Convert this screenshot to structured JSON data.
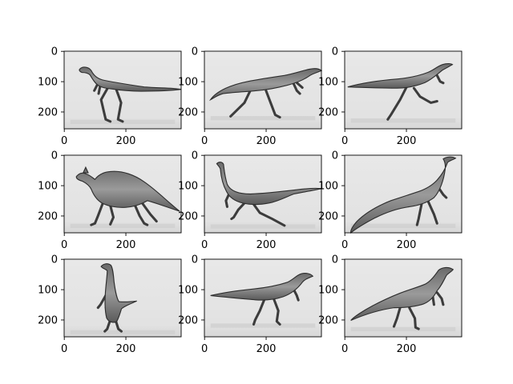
{
  "chart_data": {
    "type": "image_grid",
    "rows": 3,
    "cols": 3,
    "image_width": 380,
    "image_height": 256,
    "x_ticks": [
      0,
      200
    ],
    "y_ticks": [
      0,
      100,
      200
    ],
    "colormap": "gray",
    "panels": [
      {
        "subject": "small bipedal theropod facing left, long tail",
        "pose": "walking",
        "head": "left"
      },
      {
        "subject": "bipedal theropod facing right, textured back",
        "pose": "running",
        "head": "right"
      },
      {
        "subject": "slender running theropod facing right, long thin tail",
        "pose": "running",
        "head": "right"
      },
      {
        "subject": "quadrupedal ornithopod with head crest facing left",
        "pose": "walking",
        "head": "left"
      },
      {
        "subject": "ornithomimid with long neck facing left",
        "pose": "running",
        "head": "left"
      },
      {
        "subject": "long-necked theropod leaning up-right, tail curling left",
        "pose": "standing",
        "head": "right"
      },
      {
        "subject": "tall upright theropod facing left",
        "pose": "standing",
        "head": "left"
      },
      {
        "subject": "bipedal theropod facing right, long horizontal tail",
        "pose": "walking",
        "head": "right"
      },
      {
        "subject": "large ornithopod facing right, tail sweeping down-left",
        "pose": "walking",
        "head": "right"
      }
    ]
  }
}
